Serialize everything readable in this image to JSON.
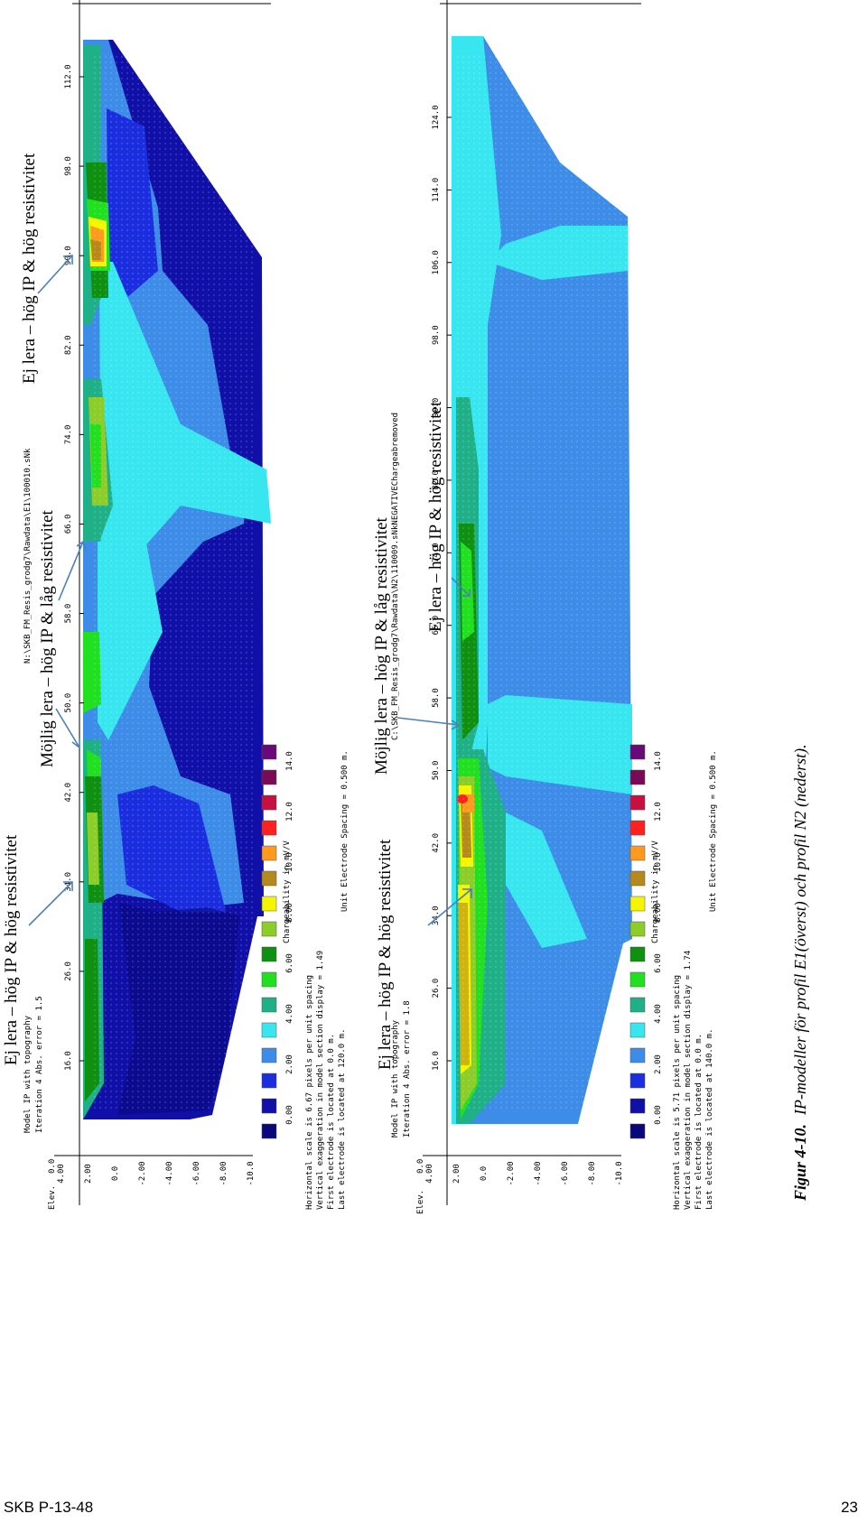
{
  "colors": {
    "scale": [
      "#08087a",
      "#1010a8",
      "#1a2ee0",
      "#3c8ce8",
      "#38e6f0",
      "#20b088",
      "#20e020",
      "#109010",
      "#8ccd2a",
      "#f5f500",
      "#b5891b",
      "#ff9a20",
      "#ff2020",
      "#c81040",
      "#7a0a58",
      "#6a0a7a"
    ],
    "arrow": "#4a7fb8"
  },
  "scale_labels": [
    "0.00",
    "2.00",
    "4.00",
    "6.00",
    "8.00",
    "10.0",
    "12.0",
    "14.0"
  ],
  "elev_ticks": [
    "4.00",
    "2.00",
    "0.0",
    "-2.00",
    "-4.00",
    "-6.00",
    "-8.00",
    "-10.0"
  ],
  "top_model": {
    "file_path": "N:\\SKB_FM_Resis_grodg7\\Rawdata\\E1\\100010.sNk",
    "title_line1": "Model IP with topography",
    "title_line2": "Iteration 4 Abs. error = 1.5",
    "elev_label": "Elev.",
    "elev_top": "0.0",
    "distance_ticks": [
      "16.0",
      "26.0",
      "34.0",
      "42.0",
      "50.0",
      "58.0",
      "66.0",
      "74.0",
      "82.0",
      "90.0",
      "98.0",
      "112.0"
    ],
    "info": [
      "Horizontal scale is 6.67 pixels per unit spacing",
      "Vertical exaggeration in model section display = 1.49",
      "First electrode is located at 0.0 m.",
      "Last electrode is located at 120.0 m."
    ],
    "unit_spacing": "Unit Electrode Spacing = 0.500 m.",
    "scale_title": "Chargeability in mV/V",
    "annotations": [
      "Ej lera – hög IP & hög resistivitet",
      "Möjlig lera – hög IP & låg resistivitet",
      "Ej lera – hög IP & hög resistivitet"
    ]
  },
  "bottom_model": {
    "file_path": "C:\\SKB_FM_Resis_grodg7\\Rawdata\\N2\\110009.sNkNEGATIVEChargeabremoved",
    "title_line1": "Model IP with topography",
    "title_line2": "Iteration 4 Abs. error = 1.8",
    "elev_label": "Elev.",
    "elev_top": "0.0",
    "distance_ticks": [
      "16.0",
      "26.0",
      "34.0",
      "42.0",
      "50.0",
      "58.0",
      "66.0",
      "74.0",
      "82.0",
      "90.0",
      "98.0",
      "106.0",
      "114.0",
      "124.0"
    ],
    "info": [
      "Horizontal scale is 5.71 pixels per unit spacing",
      "Vertical exaggeration in model section display = 1.74",
      "First electrode is located at 0.0 m.",
      "Last electrode is located at 140.0 m."
    ],
    "unit_spacing": "Unit Electrode Spacing = 0.500 m.",
    "scale_title": "Chargeability in mV/V",
    "annotations": [
      "Ej lera – hög IP & hög resistivitet",
      "Möjlig lera – hög IP & låg resistivitet",
      "Ej lera – hög IP & hög resistivitet"
    ]
  },
  "caption": {
    "label": "Figur 4-10.",
    "text": "IP-modeller för profil E1(överst) och profil N2 (nederst)."
  },
  "footer": {
    "report_id": "SKB P-13-48",
    "page_number": "23"
  }
}
